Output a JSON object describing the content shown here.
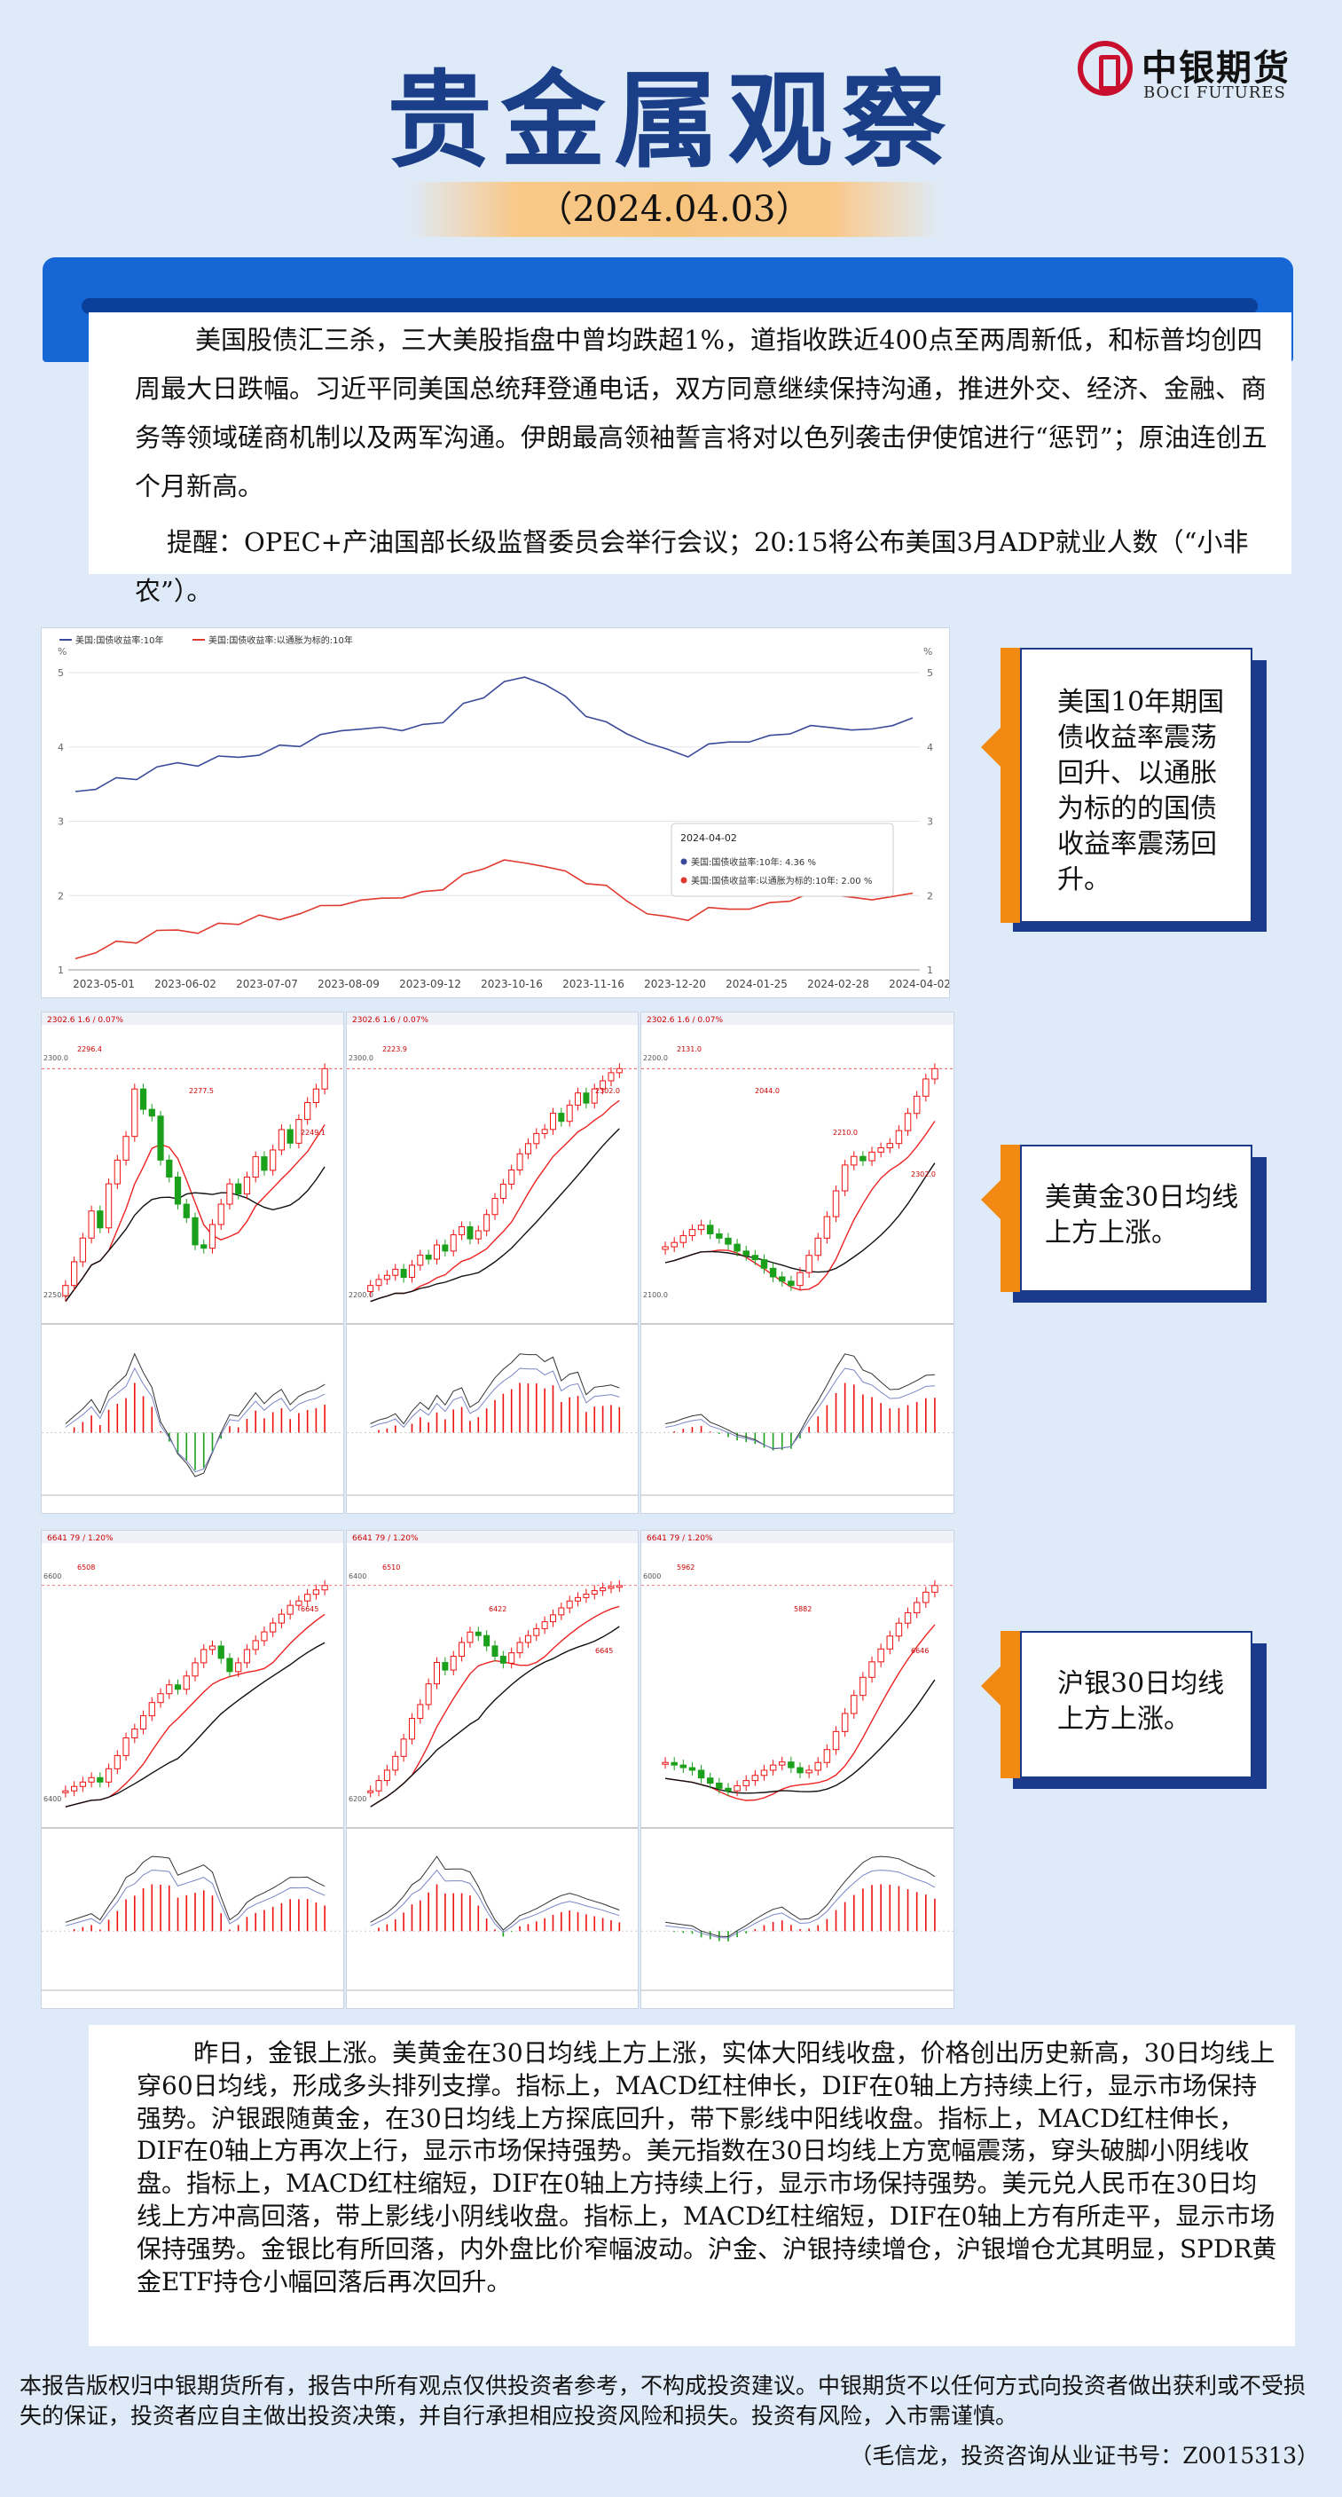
{
  "header": {
    "title": "贵金属观察",
    "date": "（2024.04.03）",
    "logo_cn": "中银期货",
    "logo_en": "BOCI FUTURES",
    "brand_color": "#1a3f88",
    "accent_color": "#1766d5"
  },
  "intro": {
    "paragraph1": "美国股债汇三杀，三大美股指盘中曾均跌超1%，道指收跌近400点至两周新低，和标普均创四周最大日跌幅。习近平同美国总统拜登通电话，双方同意继续保持沟通，推进外交、经济、金融、商务等领域磋商机制以及两军沟通。伊朗最高领袖誓言将对以色列袭击伊使馆进行“惩罚”；原油连创五个月新高。",
    "paragraph2": "提醒：OPEC+产油国部长级监督委员会举行会议；20:15将公布美国3月ADP就业人数（“小非农”）。"
  },
  "callouts": {
    "bond": "美国10年期国债收益率震荡回升、以通胀为标的的国债收益率震荡回升。",
    "gold": "美黄金30日均线上方上涨。",
    "silver": "沪银30日均线上方上涨。"
  },
  "chart_data": [
    {
      "type": "line",
      "title": "",
      "legend": [
        "美国:国债收益率:10年",
        "美国:国债收益率:以通胀为标的:10年"
      ],
      "legend_placement": "top-left",
      "x_ticks": [
        "2023-05-01",
        "2023-06-02",
        "2023-07-07",
        "2023-08-09",
        "2023-09-12",
        "2023-10-16",
        "2023-11-16",
        "2023-12-20",
        "2024-01-25",
        "2024-02-28",
        "2024-04-02"
      ],
      "y_ticks": [
        1,
        2,
        3,
        4,
        5
      ],
      "ylim": [
        1,
        5
      ],
      "left_unit": "%",
      "right_unit": "%",
      "grid": true,
      "series": [
        {
          "name": "美国:国债收益率:10年",
          "color": "#3b4a9a",
          "values": [
            3.4,
            3.45,
            3.55,
            3.6,
            3.7,
            3.8,
            3.75,
            3.85,
            3.9,
            3.85,
            4.05,
            4.0,
            4.15,
            4.25,
            4.2,
            4.3,
            4.2,
            4.3,
            4.35,
            4.55,
            4.7,
            4.85,
            4.95,
            4.85,
            4.65,
            4.45,
            4.3,
            4.2,
            4.05,
            3.95,
            3.9,
            4.0,
            4.1,
            4.05,
            4.15,
            4.2,
            4.25,
            4.3,
            4.2,
            4.25,
            4.3,
            4.36
          ]
        },
        {
          "name": "美国:国债收益率:以通胀为标的:10年",
          "color": "#e03a2f",
          "values": [
            1.15,
            1.25,
            1.35,
            1.4,
            1.5,
            1.55,
            1.5,
            1.6,
            1.65,
            1.7,
            1.7,
            1.75,
            1.85,
            1.9,
            1.9,
            2.0,
            1.95,
            2.05,
            2.1,
            2.25,
            2.4,
            2.45,
            2.45,
            2.4,
            2.3,
            2.2,
            2.1,
            1.95,
            1.75,
            1.7,
            1.7,
            1.8,
            1.85,
            1.8,
            1.9,
            1.95,
            2.0,
            2.05,
            1.95,
            1.95,
            2.0,
            2.0
          ]
        }
      ],
      "tooltip": {
        "date": "2024-04-02",
        "row1": "美国:国债收益率:10年:  4.36 %",
        "row2": "美国:国债收益率:以通胀为标的:10年:  2.00 %"
      }
    },
    {
      "type": "candlestick",
      "panel": "gold-1",
      "header": "2302.6  1.6 / 0.07%",
      "price_labels": [
        "2300.0",
        "2250.0"
      ],
      "annotations": [
        "2296.4",
        "2277.5",
        "2249.1"
      ],
      "values": [
        2238,
        2245,
        2252,
        2260,
        2255,
        2268,
        2275,
        2282,
        2296,
        2290,
        2288,
        2275,
        2270,
        2262,
        2258,
        2250,
        2249,
        2256,
        2262,
        2268,
        2265,
        2270,
        2276,
        2272,
        2278,
        2284,
        2280,
        2287,
        2292,
        2296,
        2302
      ]
    },
    {
      "type": "candlestick",
      "panel": "gold-2",
      "header": "2302.6  1.6 / 0.07%",
      "price_labels": [
        "2300.0",
        "2200.0"
      ],
      "annotations": [
        "2223.9",
        "2302.0"
      ],
      "values": [
        2195,
        2198,
        2200,
        2203,
        2199,
        2205,
        2210,
        2208,
        2215,
        2212,
        2220,
        2224,
        2218,
        2222,
        2230,
        2238,
        2245,
        2252,
        2260,
        2265,
        2270,
        2272,
        2280,
        2276,
        2284,
        2290,
        2285,
        2292,
        2296,
        2300,
        2302
      ]
    },
    {
      "type": "candlestick",
      "panel": "gold-3",
      "header": "2302.6  1.6 / 0.07%",
      "price_labels": [
        "2200.0",
        "2100.0"
      ],
      "annotations": [
        "2131.0",
        "2044.0",
        "2210.0",
        "2302.0"
      ],
      "values": [
        2095,
        2100,
        2108,
        2115,
        2120,
        2110,
        2105,
        2098,
        2090,
        2085,
        2080,
        2070,
        2060,
        2055,
        2050,
        2065,
        2085,
        2105,
        2130,
        2160,
        2190,
        2200,
        2195,
        2205,
        2210,
        2215,
        2230,
        2250,
        2270,
        2290,
        2302
      ]
    },
    {
      "type": "candlestick",
      "panel": "silver-1",
      "header": "6641  79 / 1.20%",
      "price_labels": [
        "6600",
        "6400"
      ],
      "annotations": [
        "6508",
        "6645"
      ],
      "values": [
        6180,
        6190,
        6200,
        6210,
        6200,
        6230,
        6260,
        6300,
        6320,
        6350,
        6380,
        6400,
        6420,
        6410,
        6440,
        6470,
        6500,
        6508,
        6480,
        6450,
        6470,
        6500,
        6520,
        6540,
        6560,
        6580,
        6600,
        6610,
        6625,
        6635,
        6645
      ]
    },
    {
      "type": "candlestick",
      "panel": "silver-2",
      "header": "6641  79 / 1.20%",
      "price_labels": [
        "6400",
        "6200"
      ],
      "annotations": [
        "6510",
        "6422",
        "6645"
      ],
      "values": [
        6050,
        6080,
        6110,
        6150,
        6200,
        6260,
        6300,
        6360,
        6422,
        6400,
        6440,
        6480,
        6510,
        6500,
        6470,
        6440,
        6420,
        6450,
        6480,
        6500,
        6520,
        6540,
        6560,
        6580,
        6600,
        6610,
        6620,
        6630,
        6638,
        6642,
        6645
      ]
    },
    {
      "type": "candlestick",
      "panel": "silver-3",
      "header": "6641  79 / 1.20%",
      "price_labels": [
        "6000"
      ],
      "annotations": [
        "5962",
        "5882",
        "6646"
      ],
      "values": [
        5960,
        5950,
        5940,
        5930,
        5900,
        5880,
        5860,
        5850,
        5870,
        5890,
        5910,
        5930,
        5950,
        5962,
        5940,
        5920,
        5930,
        5960,
        6010,
        6080,
        6150,
        6220,
        6290,
        6350,
        6400,
        6450,
        6500,
        6540,
        6580,
        6620,
        6646
      ]
    }
  ],
  "analysis": "昨日，金银上涨。美黄金在30日均线上方上涨，实体大阳线收盘，价格创出历史新高，30日均线上穿60日均线，形成多头排列支撑。指标上，MACD红柱伸长，DIF在0轴上方持续上行，显示市场保持强势。沪银跟随黄金，在30日均线上方探底回升，带下影线中阳线收盘。指标上，MACD红柱伸长，DIF在0轴上方再次上行，显示市场保持强势。美元指数在30日均线上方宽幅震荡，穿头破脚小阴线收盘。指标上，MACD红柱缩短，DIF在0轴上方持续上行，显示市场保持强势。美元兑人民币在30日均线上方冲高回落，带上影线小阴线收盘。指标上，MACD红柱缩短，DIF在0轴上方有所走平，显示市场保持强势。金银比有所回落，内外盘比价窄幅波动。沪金、沪银持续增仓，沪银增仓尤其明显，SPDR黄金ETF持仓小幅回落后再次回升。",
  "disclaimer": "本报告版权归中银期货所有，报告中所有观点仅供投资者参考，不构成投资建议。中银期货不以任何方式向投资者做出获利或不受损失的保证，投资者应自主做出投资决策，并自行承担相应投资风险和损失。投资有风险，入市需谨慎。",
  "author": "（毛信龙，投资咨询从业证书号：Z0015313）"
}
